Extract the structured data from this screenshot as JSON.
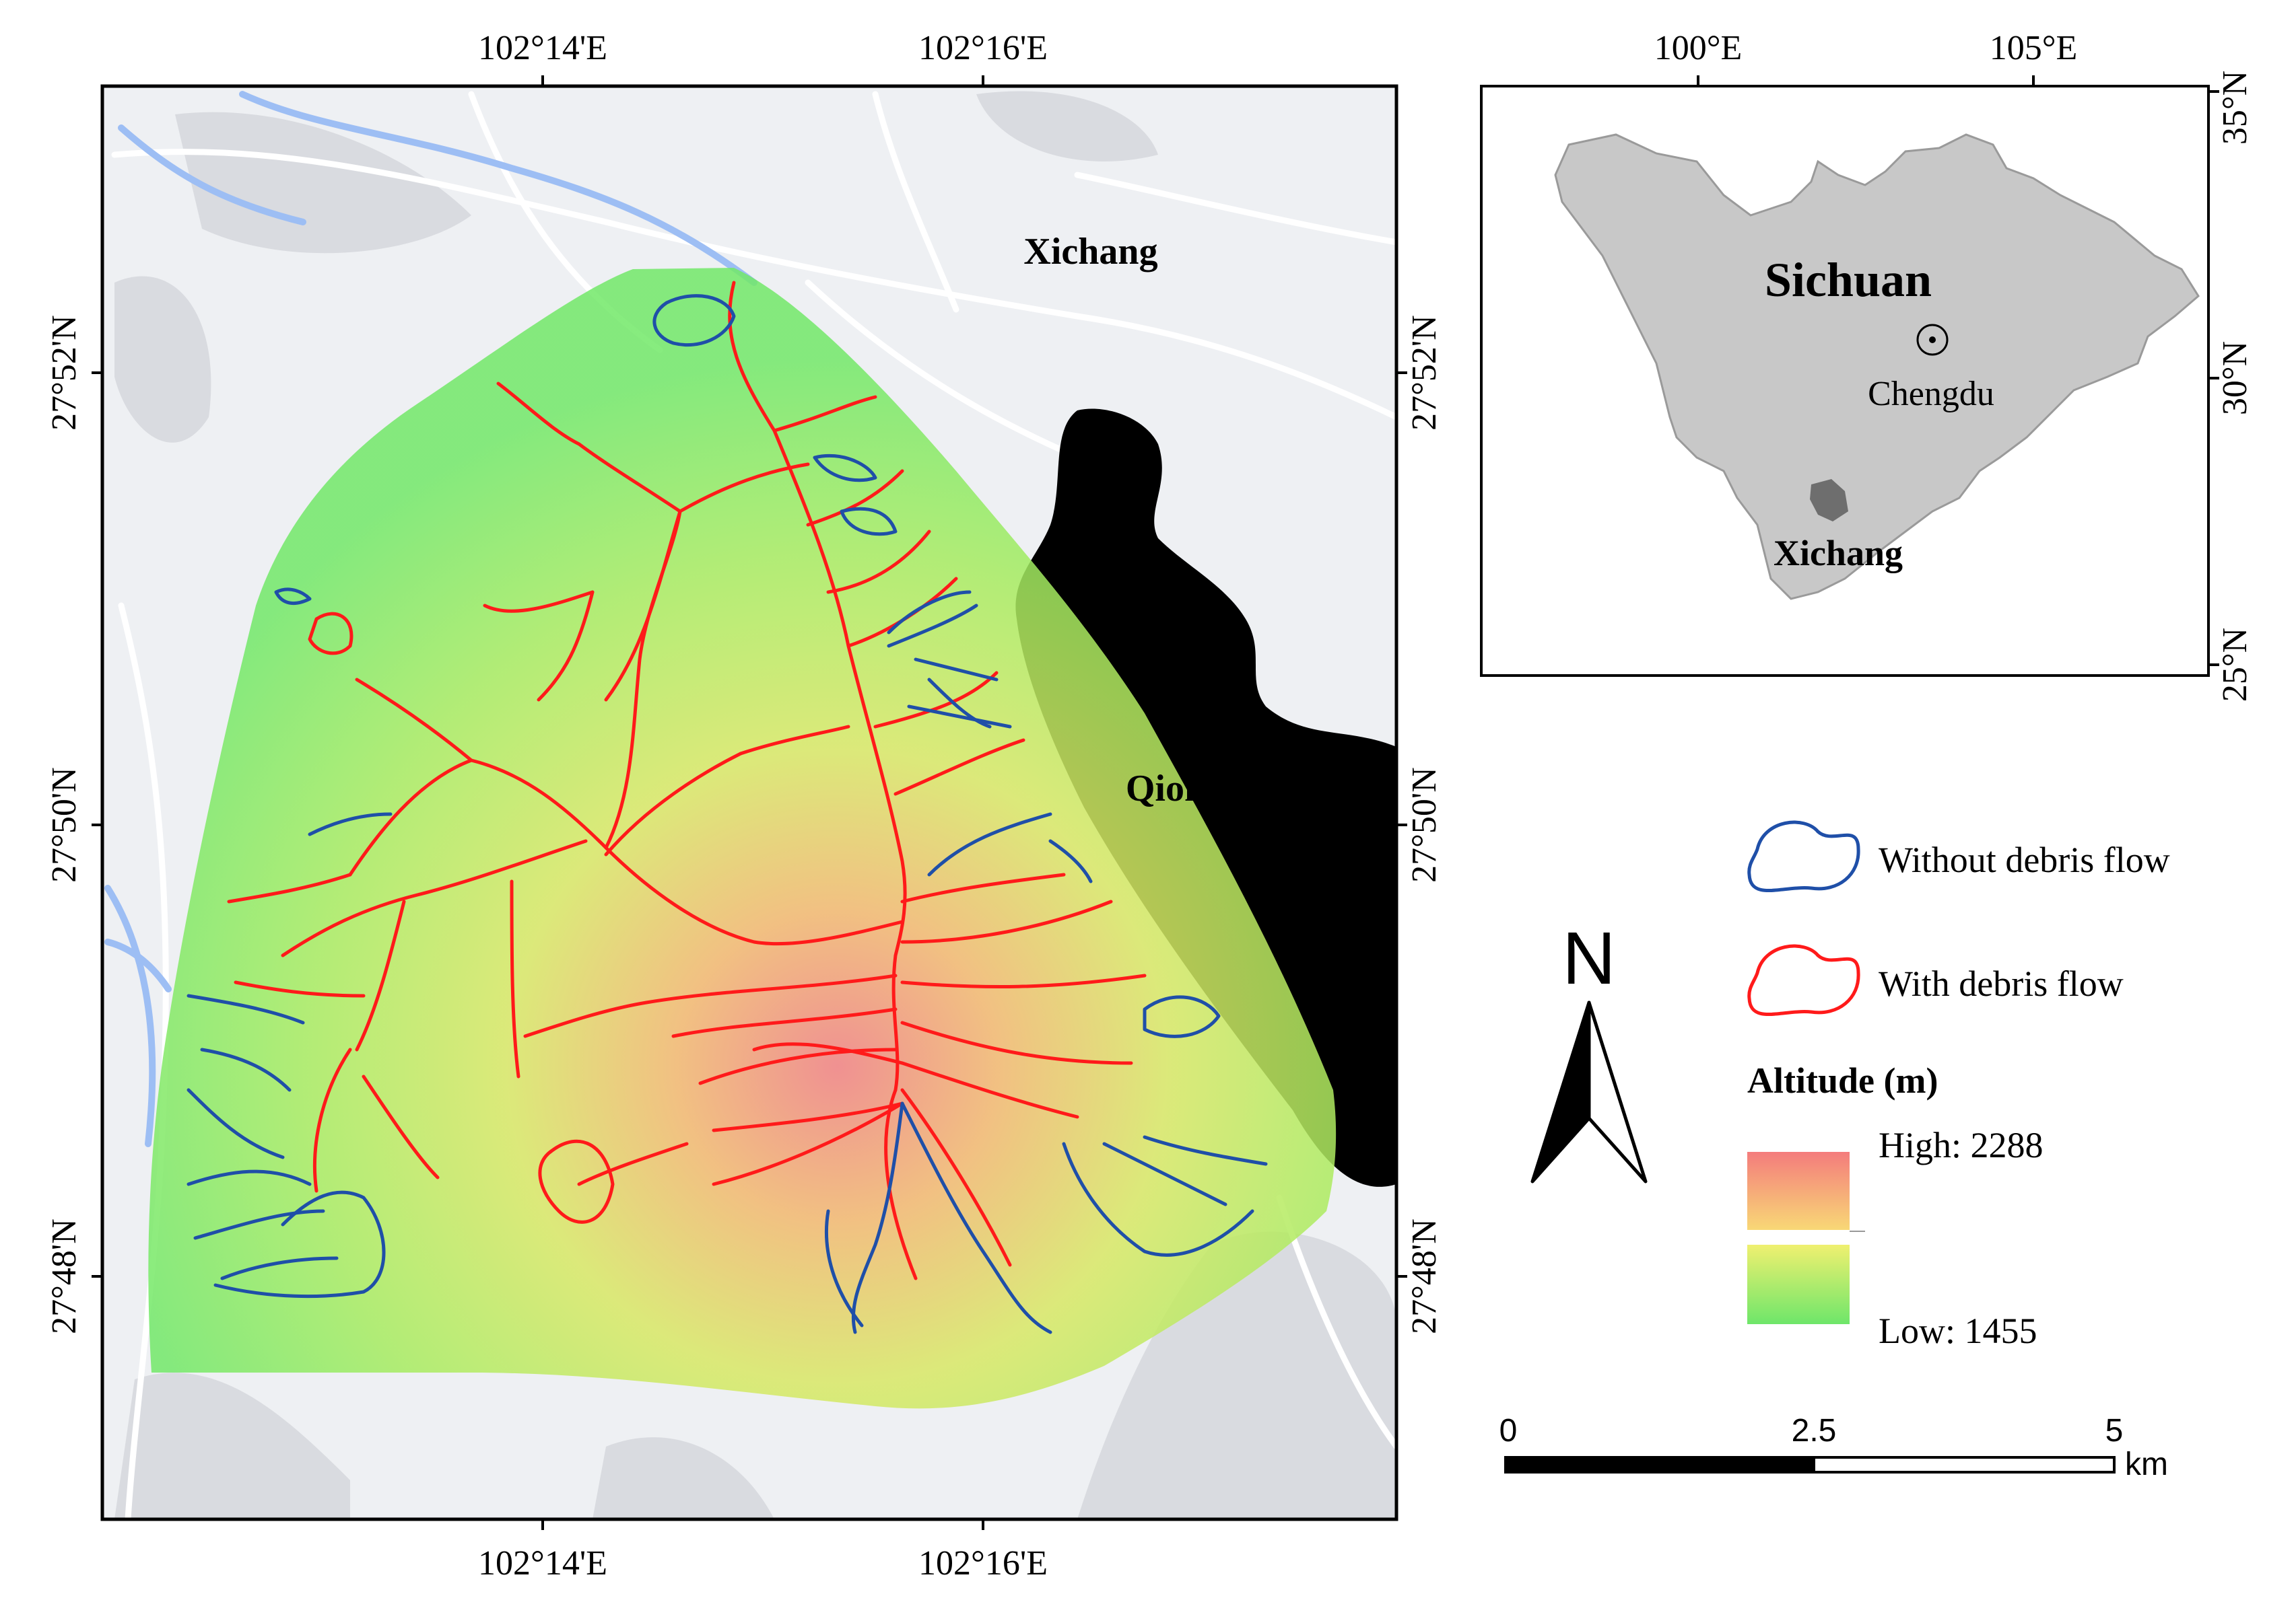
{
  "main_map": {
    "top_ticks": [
      "102°14'E",
      "102°16'E"
    ],
    "bottom_ticks": [
      "102°14'E",
      "102°16'E"
    ],
    "left_ticks": [
      "27°52'N",
      "27°50'N",
      "27°48'N"
    ],
    "right_ticks": [
      "27°52'N",
      "27°50'N",
      "27°48'N"
    ],
    "city_label": "Xichang",
    "lake_label": "Qionghai Lake",
    "colors": {
      "lake": "#a5c4f7",
      "basemap": "#eef0f3",
      "with_debris": "#ff1a1a",
      "without_debris": "#1f4fa8",
      "altitude_low": "#6fe86a",
      "altitude_high": "#f07878"
    }
  },
  "inset_map": {
    "top_ticks": [
      "100°E",
      "105°E"
    ],
    "right_ticks": [
      "35°N",
      "30°N",
      "25°N"
    ],
    "province_label": "Sichuan",
    "capital_label": "Chengdu",
    "study_area_label": "Xichang",
    "colors": {
      "province": "#c8c8c8",
      "study_area": "#6e6e6e"
    }
  },
  "legend": {
    "without_label": "Without debris flow",
    "with_label": "With debris flow",
    "altitude_title": "Altitude (m)",
    "high_label": "High: 2288",
    "low_label": "Low: 1455"
  },
  "north_arrow": {
    "letter": "N",
    "icon": "north-arrow-icon"
  },
  "scale_bar": {
    "ticks": [
      "0",
      "2.5",
      "5"
    ],
    "unit": "km"
  }
}
